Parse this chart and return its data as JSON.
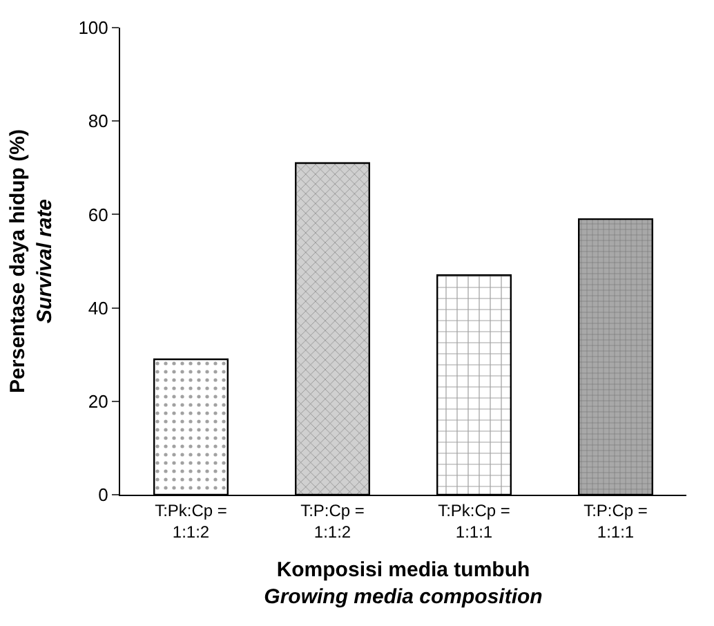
{
  "chart_data": {
    "type": "bar",
    "categories": [
      "T:Pk:Cp =\n1:1:2",
      "T:P:Cp =\n1:1:2",
      "T:Pk:Cp =\n1:1:1",
      "T:P:Cp =\n1:1:1"
    ],
    "values": [
      29,
      71,
      47,
      59
    ],
    "xlabel": "Komposisi media tumbuh\nGrowing media composition",
    "ylabel": "Persentase daya hidup (%)\nSurvival rate",
    "ylim": [
      0,
      100
    ],
    "yticks": [
      0,
      20,
      40,
      60,
      80,
      100
    ]
  }
}
